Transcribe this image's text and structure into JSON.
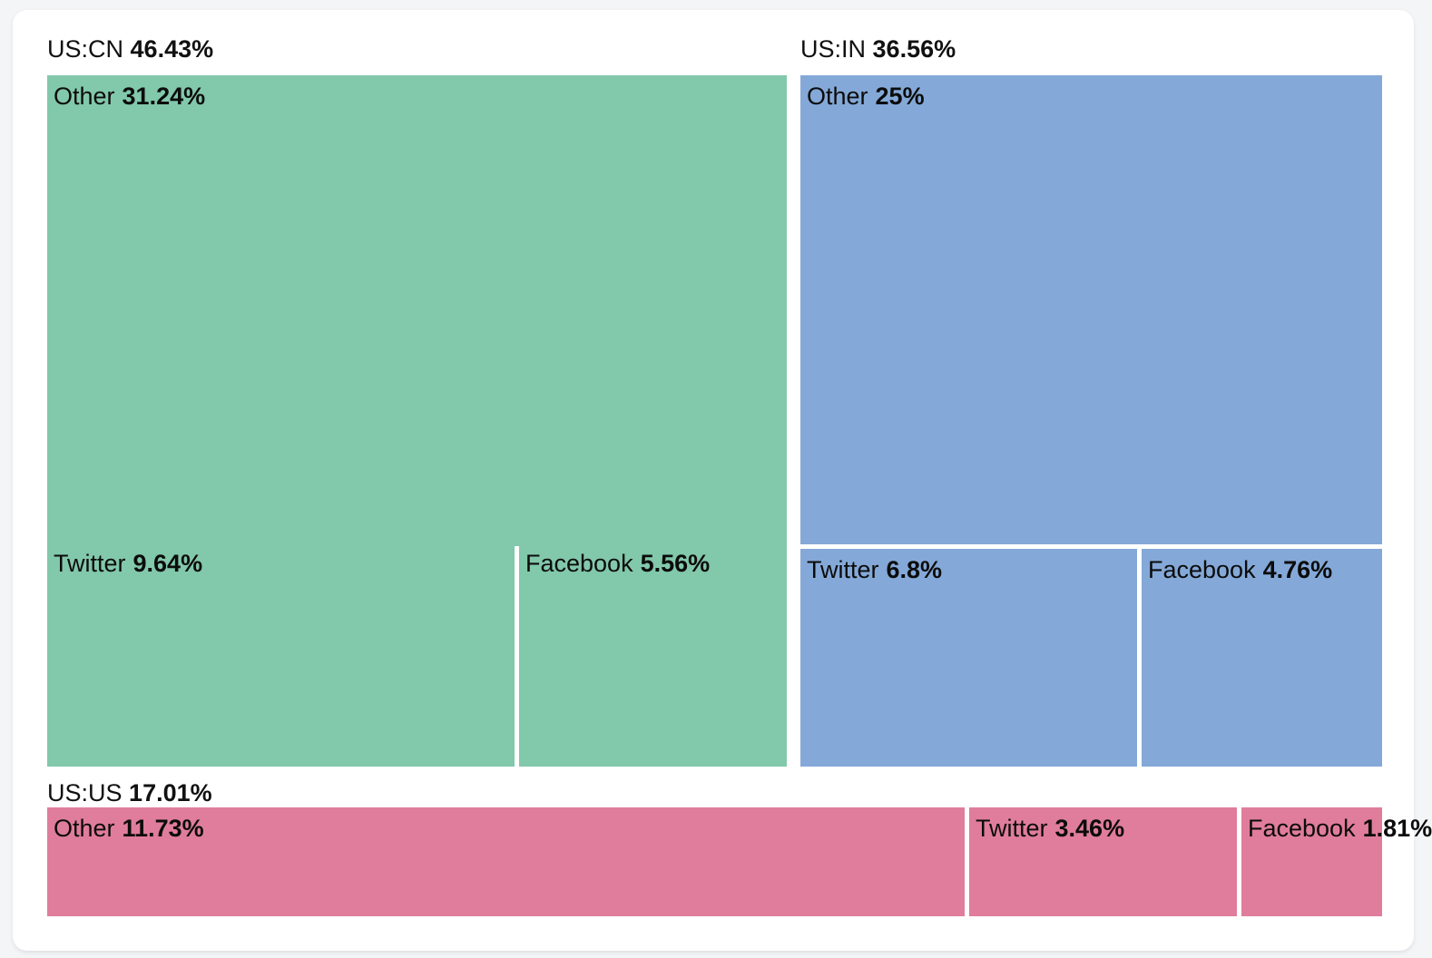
{
  "chart_data": {
    "type": "treemap",
    "legend_position": "none",
    "groups": [
      {
        "label": "US:CN",
        "pct_label": "46.43%",
        "value": 46.43,
        "color": "#82c8ab",
        "children": [
          {
            "label": "Other",
            "pct_label": "31.24%",
            "value": 31.24
          },
          {
            "label": "Twitter",
            "pct_label": "9.64%",
            "value": 9.64
          },
          {
            "label": "Facebook",
            "pct_label": "5.56%",
            "value": 5.56
          }
        ]
      },
      {
        "label": "US:IN",
        "pct_label": "36.56%",
        "value": 36.56,
        "color": "#84a9d8",
        "children": [
          {
            "label": "Other",
            "pct_label": "25%",
            "value": 25
          },
          {
            "label": "Twitter",
            "pct_label": "6.8%",
            "value": 6.8
          },
          {
            "label": "Facebook",
            "pct_label": "4.76%",
            "value": 4.76
          }
        ]
      },
      {
        "label": "US:US",
        "pct_label": "17.01%",
        "value": 17.01,
        "color": "#e07d9c",
        "children": [
          {
            "label": "Other",
            "pct_label": "11.73%",
            "value": 11.73
          },
          {
            "label": "Twitter",
            "pct_label": "3.46%",
            "value": 3.46
          },
          {
            "label": "Facebook",
            "pct_label": "1.81%",
            "value": 1.81
          }
        ]
      }
    ]
  }
}
